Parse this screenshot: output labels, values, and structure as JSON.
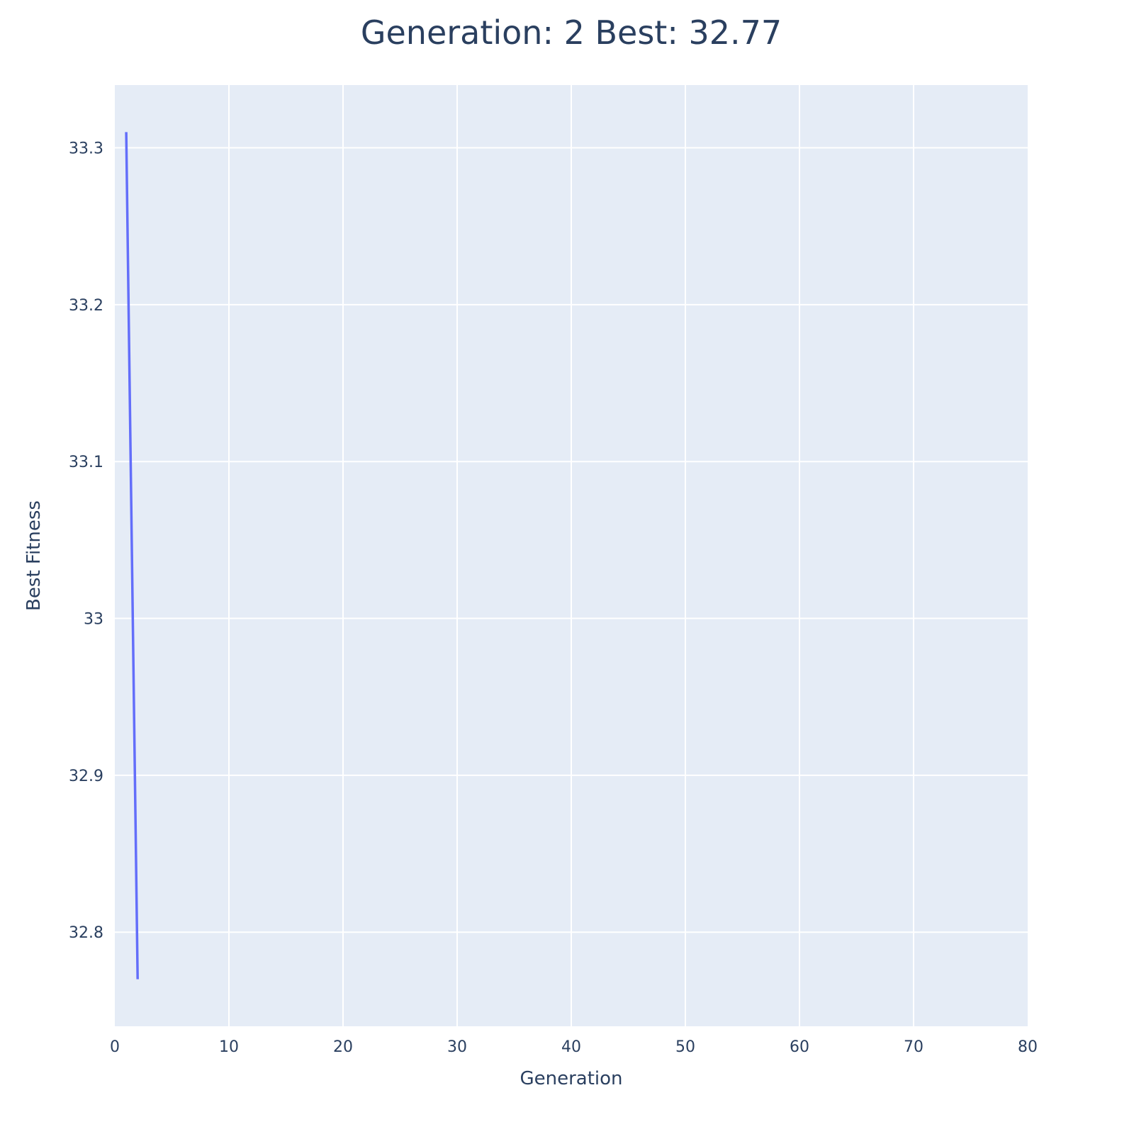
{
  "colors": {
    "plot_bg": "#e5ecf6",
    "grid": "#ffffff",
    "line": "#636efa",
    "text": "#2a3f5f"
  },
  "chart_data": {
    "type": "line",
    "title": "Generation: 2 Best: 32.77",
    "xlabel": "Generation",
    "ylabel": "Best Fitness",
    "xlim": [
      0,
      80
    ],
    "ylim": [
      32.74,
      33.34
    ],
    "xticks": [
      0,
      10,
      20,
      30,
      40,
      50,
      60,
      70,
      80
    ],
    "xtick_labels": [
      "0",
      "10",
      "20",
      "30",
      "40",
      "50",
      "60",
      "70",
      "80"
    ],
    "yticks": [
      32.8,
      32.9,
      33.0,
      33.1,
      33.2,
      33.3
    ],
    "ytick_labels": [
      "32.8",
      "32.9",
      "33",
      "33.1",
      "33.2",
      "33.3"
    ],
    "grid": true,
    "legend": "none",
    "series": [
      {
        "x": [
          1,
          2
        ],
        "y": [
          33.31,
          32.77
        ]
      }
    ]
  }
}
